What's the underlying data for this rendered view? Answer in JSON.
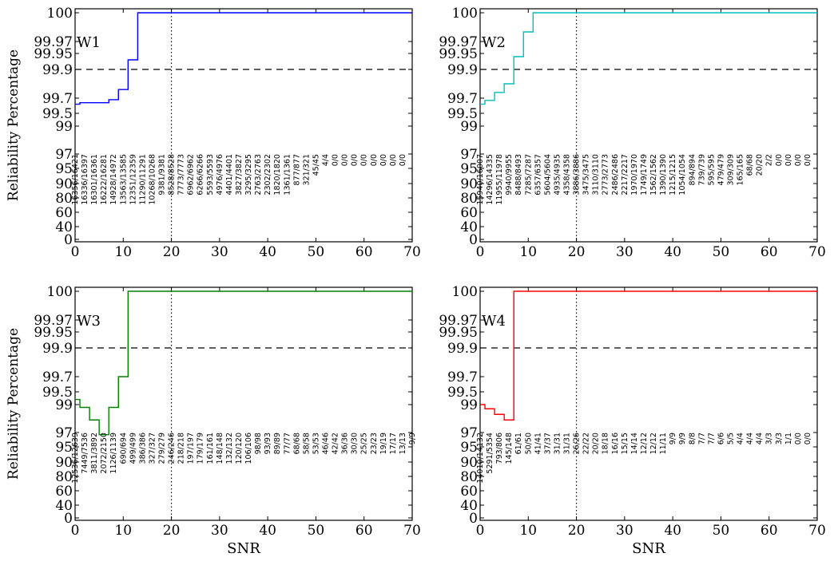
{
  "y_axis_label": "Reliability Percentage",
  "x_axis_label": "SNR",
  "chart_data": [
    {
      "type": "line",
      "panel_label": "W1",
      "color": "#0000ff",
      "xlim": [
        0,
        70
      ],
      "x_ticks": [
        0,
        10,
        20,
        30,
        40,
        50,
        60,
        70
      ],
      "y_tick_values": [
        0,
        40,
        60,
        80,
        90,
        95,
        97,
        99,
        99.5,
        99.7,
        99.9,
        99.95,
        99.97,
        100
      ],
      "y_tick_labels": [
        "0",
        "40",
        "60",
        "80",
        "90",
        "95",
        "97",
        "99",
        "99.5",
        "99.7",
        "99.9",
        "99.95",
        "99.97",
        "100"
      ],
      "hline": 99.9,
      "vline": 20,
      "xlabel": "",
      "ylabel": "Reliability Percentage",
      "step_x": [
        0,
        1,
        7,
        9,
        11,
        13,
        70
      ],
      "step_y": [
        99.62,
        99.64,
        99.68,
        99.76,
        99.93,
        100,
        100
      ],
      "count_labels": [
        "16356/16421",
        "16336/16397",
        "16301/16361",
        "16222/16281",
        "14928/14972",
        "13563/13585",
        "12351/12359",
        "11290/11291",
        "10268/10268",
        "9381/9381",
        "8528/8528",
        "7773/7773",
        "6962/6962",
        "6266/6266",
        "5593/5593",
        "4976/4976",
        "4401/4401",
        "3827/3827",
        "3295/3295",
        "2763/2763",
        "2302/2302",
        "1820/1820",
        "1361/1361",
        "877/877",
        "321/321",
        "45/45",
        "4/4",
        "0/0",
        "0/0",
        "0/0",
        "0/0",
        "0/0",
        "0/0",
        "0/0",
        "0/0"
      ]
    },
    {
      "type": "line",
      "panel_label": "W2",
      "color": "#00bfbf",
      "xlim": [
        0,
        70
      ],
      "x_ticks": [
        0,
        10,
        20,
        30,
        40,
        50,
        60,
        70
      ],
      "y_tick_values": [
        0,
        40,
        60,
        80,
        90,
        95,
        97,
        99,
        99.5,
        99.7,
        99.9,
        99.95,
        99.97,
        100
      ],
      "y_tick_labels": [
        "0",
        "40",
        "60",
        "80",
        "90",
        "95",
        "97",
        "99",
        "99.5",
        "99.7",
        "99.9",
        "99.95",
        "99.97",
        "100"
      ],
      "hline": 99.9,
      "vline": 20,
      "xlabel": "",
      "ylabel": "",
      "step_x": [
        0,
        1,
        3,
        5,
        7,
        9,
        11,
        70
      ],
      "step_y": [
        99.62,
        99.67,
        99.74,
        99.8,
        99.94,
        99.98,
        100,
        100
      ],
      "count_labels": [
        "15940/16007",
        "14296/14335",
        "11955/11978",
        "9940/9955",
        "8488/8493",
        "7285/7287",
        "6357/6357",
        "5604/5604",
        "4935/4935",
        "4358/4358",
        "3886/3886",
        "3475/3475",
        "3110/3110",
        "2773/2773",
        "2486/2486",
        "2217/2217",
        "1970/1970",
        "1749/1749",
        "1562/1562",
        "1390/1390",
        "1215/1215",
        "1054/1054",
        "894/894",
        "739/739",
        "595/595",
        "479/479",
        "309/309",
        "165/165",
        "68/68",
        "20/20",
        "2/2",
        "0/0",
        "0/0",
        "0/0",
        "0/0"
      ]
    },
    {
      "type": "line",
      "panel_label": "W3",
      "color": "#008000",
      "xlim": [
        0,
        70
      ],
      "x_ticks": [
        0,
        10,
        20,
        30,
        40,
        50,
        60,
        70
      ],
      "y_tick_values": [
        0,
        40,
        60,
        80,
        90,
        95,
        97,
        99,
        99.5,
        99.7,
        99.9,
        99.95,
        99.97,
        100
      ],
      "y_tick_labels": [
        "0",
        "40",
        "60",
        "80",
        "90",
        "95",
        "97",
        "99",
        "99.5",
        "99.7",
        "99.9",
        "99.95",
        "99.97",
        "100"
      ],
      "hline": 99.9,
      "vline": 20,
      "xlabel": "SNR",
      "ylabel": "Reliability Percentage",
      "step_x": [
        0,
        1,
        3,
        5,
        7,
        9,
        11,
        70
      ],
      "step_y": [
        99.2,
        98.8,
        97.9,
        96.7,
        98.8,
        99.7,
        100,
        100
      ],
      "count_labels": [
        "12536/12639",
        "7449/7536",
        "3811/3892",
        "2072/2150",
        "1126/1139",
        "690/694",
        "499/499",
        "386/386",
        "327/327",
        "279/279",
        "246/246",
        "218/218",
        "197/197",
        "179/179",
        "161/161",
        "148/148",
        "132/132",
        "120/120",
        "106/106",
        "98/98",
        "93/93",
        "89/89",
        "77/77",
        "68/68",
        "58/58",
        "53/53",
        "46/46",
        "42/42",
        "36/36",
        "30/30",
        "25/25",
        "23/23",
        "19/19",
        "17/17",
        "13/13",
        "9/9"
      ]
    },
    {
      "type": "line",
      "panel_label": "W4",
      "color": "#ff0000",
      "xlim": [
        0,
        70
      ],
      "x_ticks": [
        0,
        10,
        20,
        30,
        40,
        50,
        60,
        70
      ],
      "y_tick_values": [
        0,
        40,
        60,
        80,
        90,
        95,
        97,
        99,
        99.5,
        99.7,
        99.9,
        99.95,
        99.97,
        100
      ],
      "y_tick_labels": [
        "0",
        "40",
        "60",
        "80",
        "90",
        "95",
        "97",
        "99",
        "99.5",
        "99.7",
        "99.9",
        "99.95",
        "99.97",
        "100"
      ],
      "hline": 99.9,
      "vline": 20,
      "xlabel": "SNR",
      "ylabel": "",
      "step_x": [
        0,
        1,
        3,
        5,
        7,
        70
      ],
      "step_y": [
        99.0,
        98.7,
        98.3,
        97.9,
        100,
        100
      ],
      "count_labels": [
        "14010/14132",
        "5291/5354",
        "793/806",
        "145/148",
        "61/61",
        "50/50",
        "41/41",
        "37/37",
        "31/31",
        "31/31",
        "26/26",
        "22/22",
        "20/20",
        "18/18",
        "16/16",
        "15/15",
        "14/14",
        "12/12",
        "12/12",
        "11/11",
        "9/9",
        "9/9",
        "8/8",
        "7/7",
        "7/7",
        "6/6",
        "5/5",
        "4/4",
        "4/4",
        "4/4",
        "3/3",
        "3/3",
        "1/1",
        "0/0",
        "0/0"
      ]
    }
  ]
}
